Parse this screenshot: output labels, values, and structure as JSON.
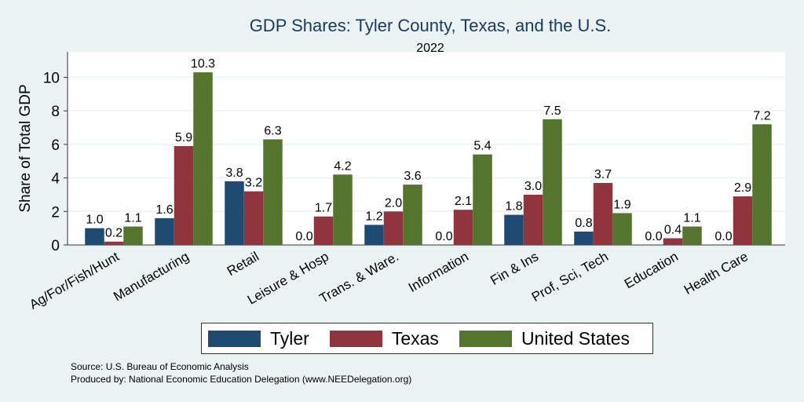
{
  "chart_data": {
    "type": "bar",
    "title": "GDP Shares: Tyler County, Texas, and the U.S.",
    "subtitle": "2022",
    "xlabel": "",
    "ylabel": "Share of Total GDP",
    "ylim": [
      0,
      11
    ],
    "yticks": [
      0,
      2,
      4,
      6,
      8,
      10
    ],
    "grid": true,
    "legend_position": "bottom",
    "categories": [
      "Ag/For/Fish/Hunt",
      "Manufacturing",
      "Retail",
      "Leisure & Hosp",
      "Trans. & Ware.",
      "Information",
      "Fin & Ins",
      "Prof, Sci, Tech",
      "Education",
      "Health Care"
    ],
    "series": [
      {
        "name": "Tyler",
        "color": "#1f4a72",
        "values": [
          1.0,
          1.6,
          3.8,
          0.0,
          1.2,
          0.0,
          1.8,
          0.8,
          0.0,
          0.0
        ]
      },
      {
        "name": "Texas",
        "color": "#90353d",
        "values": [
          0.2,
          5.9,
          3.2,
          1.7,
          2.0,
          2.1,
          3.0,
          3.7,
          0.4,
          2.9
        ]
      },
      {
        "name": "United States",
        "color": "#55752f",
        "values": [
          1.1,
          10.3,
          6.3,
          4.2,
          3.6,
          5.4,
          7.5,
          1.9,
          1.1,
          7.2
        ]
      }
    ]
  },
  "notes": {
    "source": "Source: U.S. Bureau of Economic Analysis",
    "produced": "Produced by: National Economic Education Delegation (www.NEEDelegation.org)"
  }
}
